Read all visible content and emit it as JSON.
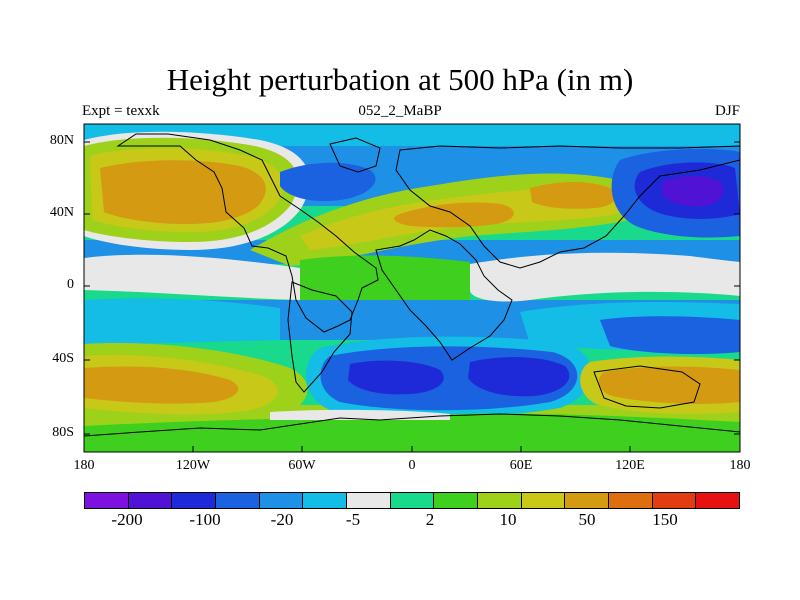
{
  "title": "Height perturbation at 500 hPa (in m)",
  "left_string": "Expt = texxk",
  "center_string": "052_2_MaBP",
  "right_string": "DJF",
  "y_ticks": [
    "80N",
    "40N",
    "0",
    "40S",
    "80S"
  ],
  "x_ticks": [
    "180",
    "120W",
    "60W",
    "0",
    "60E",
    "120E",
    "180"
  ],
  "colorbar": {
    "colors": [
      "#7d12e0",
      "#5012d4",
      "#1e2ad7",
      "#1a62e0",
      "#1e90e6",
      "#14bde6",
      "#e8e8e8",
      "#18d98c",
      "#3fcf1e",
      "#9ed21a",
      "#c8c818",
      "#d39a12",
      "#dc7010",
      "#e23c12",
      "#e61212"
    ],
    "labels": [
      "-200",
      "-100",
      "-20",
      "-5",
      "2",
      "10",
      "50",
      "150"
    ]
  },
  "palette": {
    "deep_neg": "#1e2ad7",
    "neg": "#1a62e0",
    "mid_neg": "#1e90e6",
    "light_neg": "#14bde6",
    "neutral": "#e8e8e8",
    "teal": "#18d98c",
    "green": "#3fcf1e",
    "yellow_green": "#9ed21a",
    "yellow": "#c8c818",
    "orange": "#d39a12"
  }
}
